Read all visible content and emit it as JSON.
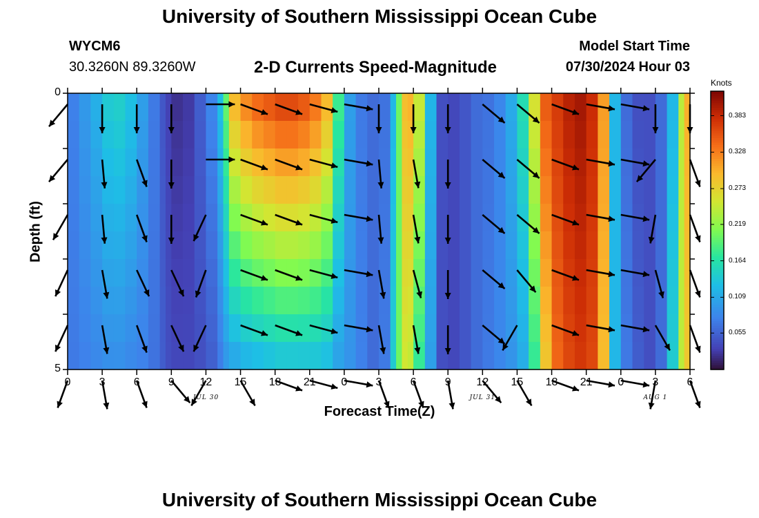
{
  "header": {
    "title": "University of Southern Mississippi Ocean Cube",
    "station_id": "WYCM6",
    "station_coords": "30.3260N  89.3260W",
    "subtitle": "2-D Currents Speed-Magnitude",
    "model_start_label": "Model Start Time",
    "model_start_value": "07/30/2024 Hour 03"
  },
  "footer": {
    "title": "University of Southern Mississippi Ocean Cube"
  },
  "chart_data": {
    "type": "heatmap",
    "title": "2-D Currents Speed-Magnitude",
    "xlabel": "Forecast Time(Z)",
    "ylabel": "Depth (ft)",
    "x_tick_labels": [
      "0",
      "3",
      "6",
      "9",
      "12",
      "15",
      "18",
      "21",
      "0",
      "3",
      "6",
      "9",
      "12",
      "15",
      "18",
      "21",
      "0",
      "3",
      "6"
    ],
    "x_range_hours": [
      0,
      54
    ],
    "date_labels": [
      {
        "text": "JUL 30",
        "hour": 12
      },
      {
        "text": "JUL 31",
        "hour": 36
      },
      {
        "text": "AUG 1",
        "hour": 51
      }
    ],
    "y_tick_labels": [
      "0",
      "5"
    ],
    "y_range_ft": [
      0,
      5
    ],
    "y_inverted": true,
    "colorbar": {
      "unit": "Knots",
      "tick_labels": [
        "0.383",
        "0.328",
        "0.273",
        "0.219",
        "0.164",
        "0.109",
        "0.055"
      ],
      "range": [
        0.0,
        0.42
      ]
    },
    "depth_rows_ft": [
      0.25,
      0.75,
      1.25,
      1.75,
      2.25,
      2.75,
      3.25,
      3.75,
      4.25,
      4.75
    ],
    "speed_profile": {
      "hours": [
        0,
        1,
        2,
        3,
        4,
        5,
        6,
        7,
        8,
        8.5,
        9,
        9.5,
        10,
        11,
        12,
        13,
        13.5,
        14,
        15,
        16,
        17,
        18,
        19,
        20,
        21,
        22,
        23,
        24,
        25,
        26,
        27,
        28,
        28.5,
        29,
        29.5,
        30,
        31,
        32,
        33,
        34,
        35,
        36,
        37,
        38,
        39,
        40,
        41,
        42,
        43,
        44,
        45,
        46,
        47,
        48,
        49,
        50,
        51,
        52,
        53,
        53.5,
        54
      ],
      "surface": [
        0.075,
        0.095,
        0.115,
        0.14,
        0.145,
        0.13,
        0.1,
        0.07,
        0.045,
        0.03,
        0.02,
        0.02,
        0.025,
        0.05,
        0.08,
        0.13,
        0.2,
        0.3,
        0.33,
        0.35,
        0.36,
        0.37,
        0.37,
        0.36,
        0.34,
        0.3,
        0.18,
        0.1,
        0.07,
        0.06,
        0.065,
        0.12,
        0.2,
        0.29,
        0.3,
        0.25,
        0.12,
        0.04,
        0.035,
        0.045,
        0.06,
        0.065,
        0.08,
        0.11,
        0.16,
        0.26,
        0.35,
        0.37,
        0.39,
        0.4,
        0.38,
        0.31,
        0.12,
        0.06,
        0.04,
        0.04,
        0.06,
        0.12,
        0.24,
        0.3,
        0.4
      ],
      "bottom": [
        0.07,
        0.075,
        0.08,
        0.085,
        0.085,
        0.08,
        0.075,
        0.065,
        0.05,
        0.04,
        0.035,
        0.035,
        0.035,
        0.04,
        0.05,
        0.07,
        0.09,
        0.1,
        0.11,
        0.115,
        0.12,
        0.125,
        0.125,
        0.125,
        0.125,
        0.12,
        0.1,
        0.09,
        0.075,
        0.06,
        0.07,
        0.14,
        0.2,
        0.25,
        0.24,
        0.17,
        0.1,
        0.04,
        0.035,
        0.045,
        0.06,
        0.07,
        0.08,
        0.09,
        0.11,
        0.17,
        0.28,
        0.34,
        0.36,
        0.37,
        0.36,
        0.29,
        0.12,
        0.07,
        0.05,
        0.04,
        0.06,
        0.14,
        0.24,
        0.28,
        0.38
      ]
    },
    "vector_rows_ft": [
      0.2,
      1.2,
      2.2,
      3.2,
      4.2,
      5.2
    ],
    "vector_hours": [
      0,
      3,
      6,
      9,
      12,
      15,
      18,
      21,
      24,
      27,
      30,
      33,
      36,
      39,
      42,
      45,
      48,
      51,
      54
    ],
    "vector_angles_deg": [
      [
        -40,
        0,
        0,
        0,
        90,
        70,
        70,
        75,
        80,
        0,
        0,
        0,
        50,
        50,
        70,
        80,
        80,
        0,
        0
      ],
      [
        -40,
        5,
        20,
        0,
        90,
        70,
        70,
        75,
        80,
        5,
        10,
        0,
        50,
        50,
        70,
        80,
        80,
        -40,
        20
      ],
      [
        -30,
        5,
        20,
        0,
        -25,
        70,
        70,
        75,
        80,
        5,
        10,
        0,
        50,
        50,
        70,
        80,
        80,
        -10,
        20
      ],
      [
        -25,
        10,
        25,
        25,
        -20,
        70,
        70,
        75,
        80,
        10,
        15,
        0,
        50,
        40,
        70,
        80,
        80,
        15,
        20
      ],
      [
        -25,
        10,
        20,
        25,
        -25,
        70,
        70,
        75,
        80,
        10,
        10,
        0,
        50,
        -30,
        70,
        80,
        80,
        30,
        20
      ],
      [
        -20,
        10,
        20,
        40,
        -30,
        30,
        70,
        75,
        80,
        20,
        20,
        10,
        40,
        30,
        70,
        80,
        80,
        -10,
        20
      ]
    ]
  }
}
